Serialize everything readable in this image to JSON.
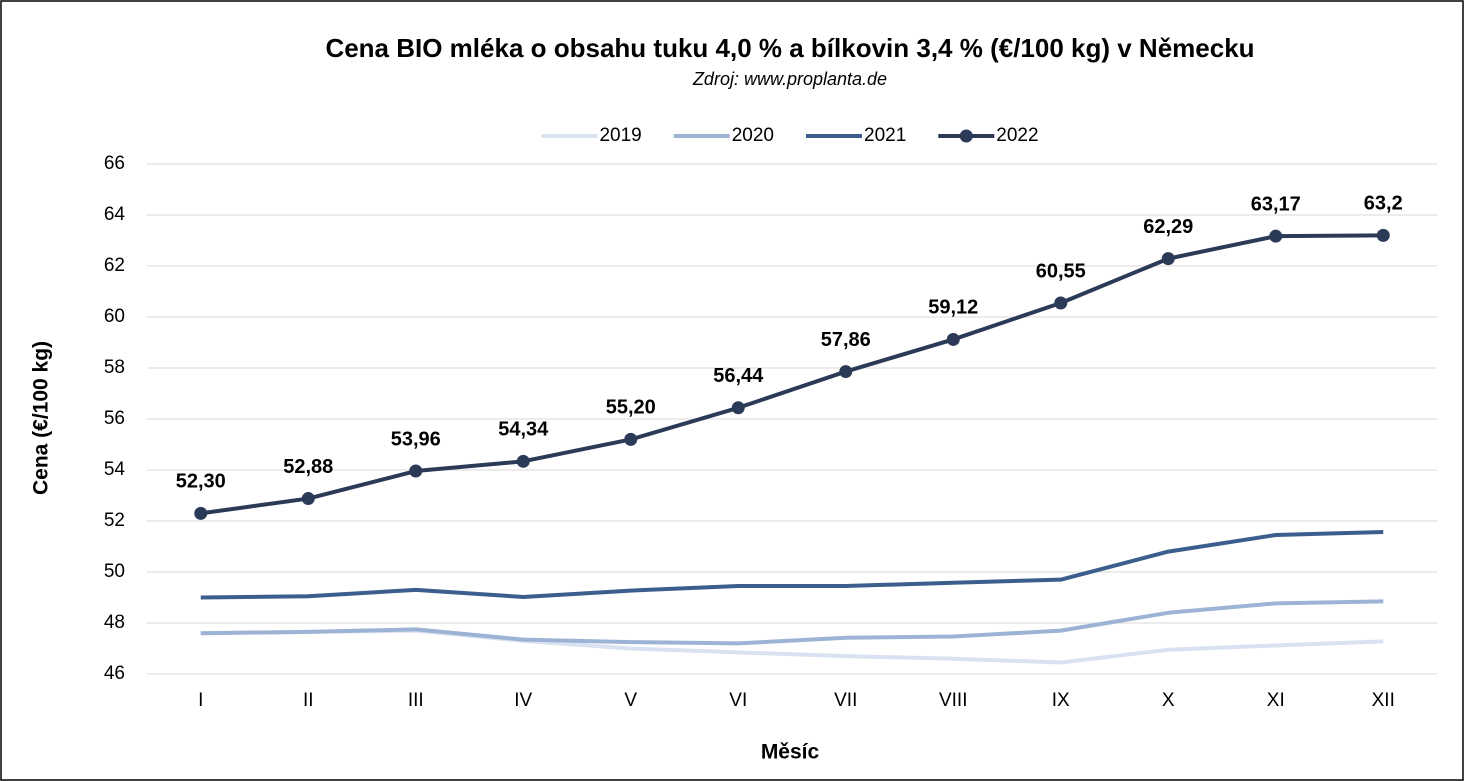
{
  "chart_data": {
    "type": "line",
    "title": "Cena BIO mléka o obsahu tuku 4,0 % a bílkovin 3,4 % (€/100 kg) v Německu",
    "subtitle": "Zdroj: www.proplanta.de",
    "x_label": "Měsíc",
    "y_label": "Cena (€/100 kg)",
    "categories": [
      "I",
      "II",
      "III",
      "IV",
      "V",
      "VI",
      "VII",
      "VIII",
      "IX",
      "X",
      "XI",
      "XII"
    ],
    "series": [
      {
        "name": "2019",
        "color": "#d9e2f1",
        "values": [
          47.6,
          47.65,
          47.7,
          47.3,
          47.0,
          46.85,
          46.7,
          46.6,
          46.45,
          46.95,
          47.12,
          47.28
        ]
      },
      {
        "name": "2020",
        "color": "#9db3d6",
        "values": [
          47.6,
          47.65,
          47.75,
          47.35,
          47.25,
          47.2,
          47.42,
          47.47,
          47.7,
          48.4,
          48.77,
          48.85
        ]
      },
      {
        "name": "2021",
        "color": "#3b5e8c",
        "values": [
          49.0,
          49.05,
          49.3,
          49.02,
          49.27,
          49.45,
          49.45,
          49.58,
          49.7,
          50.8,
          51.45,
          51.57
        ]
      },
      {
        "name": "2022",
        "color": "#2b3a57",
        "markers": true,
        "values": [
          52.3,
          52.88,
          53.96,
          54.34,
          55.2,
          56.44,
          57.86,
          59.12,
          60.55,
          62.29,
          63.17,
          63.2
        ],
        "value_labels": [
          "52,30",
          "52,88",
          "53,96",
          "54,34",
          "55,20",
          "56,44",
          "57,86",
          "59,12",
          "60,55",
          "62,29",
          "63,17",
          "63,2"
        ]
      }
    ],
    "ylim": [
      46,
      66
    ],
    "yticks": [
      46,
      48,
      50,
      52,
      54,
      56,
      58,
      60,
      62,
      64,
      66
    ],
    "grid": true,
    "legend": "top"
  }
}
